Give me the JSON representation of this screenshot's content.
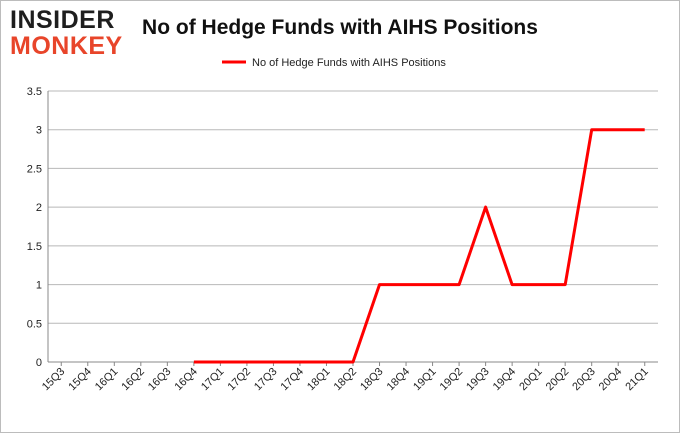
{
  "logo": {
    "line1": "INSIDER",
    "line2": "MONKEY"
  },
  "chart_data": {
    "type": "line",
    "title": "No of Hedge Funds with AIHS Positions",
    "categories": [
      "15Q3",
      "15Q4",
      "16Q1",
      "16Q2",
      "16Q3",
      "16Q4",
      "17Q1",
      "17Q2",
      "17Q3",
      "17Q4",
      "18Q1",
      "18Q2",
      "18Q3",
      "18Q4",
      "19Q1",
      "19Q2",
      "19Q3",
      "19Q4",
      "20Q1",
      "20Q2",
      "20Q3",
      "20Q4",
      "21Q1"
    ],
    "series": [
      {
        "name": "No of Hedge Funds with AIHS Positions",
        "color": "#ff0000",
        "values": [
          null,
          null,
          null,
          null,
          null,
          0,
          0,
          0,
          0,
          0,
          0,
          0,
          1,
          1,
          1,
          1,
          2,
          1,
          1,
          1,
          3,
          3,
          3
        ]
      }
    ],
    "ylim": [
      0,
      3.5
    ],
    "yticks": [
      "0",
      "0.5",
      "1",
      "1.5",
      "2",
      "2.5",
      "3",
      "3.5"
    ],
    "grid": true,
    "legend": "top-center",
    "xlabel": "",
    "ylabel": ""
  }
}
